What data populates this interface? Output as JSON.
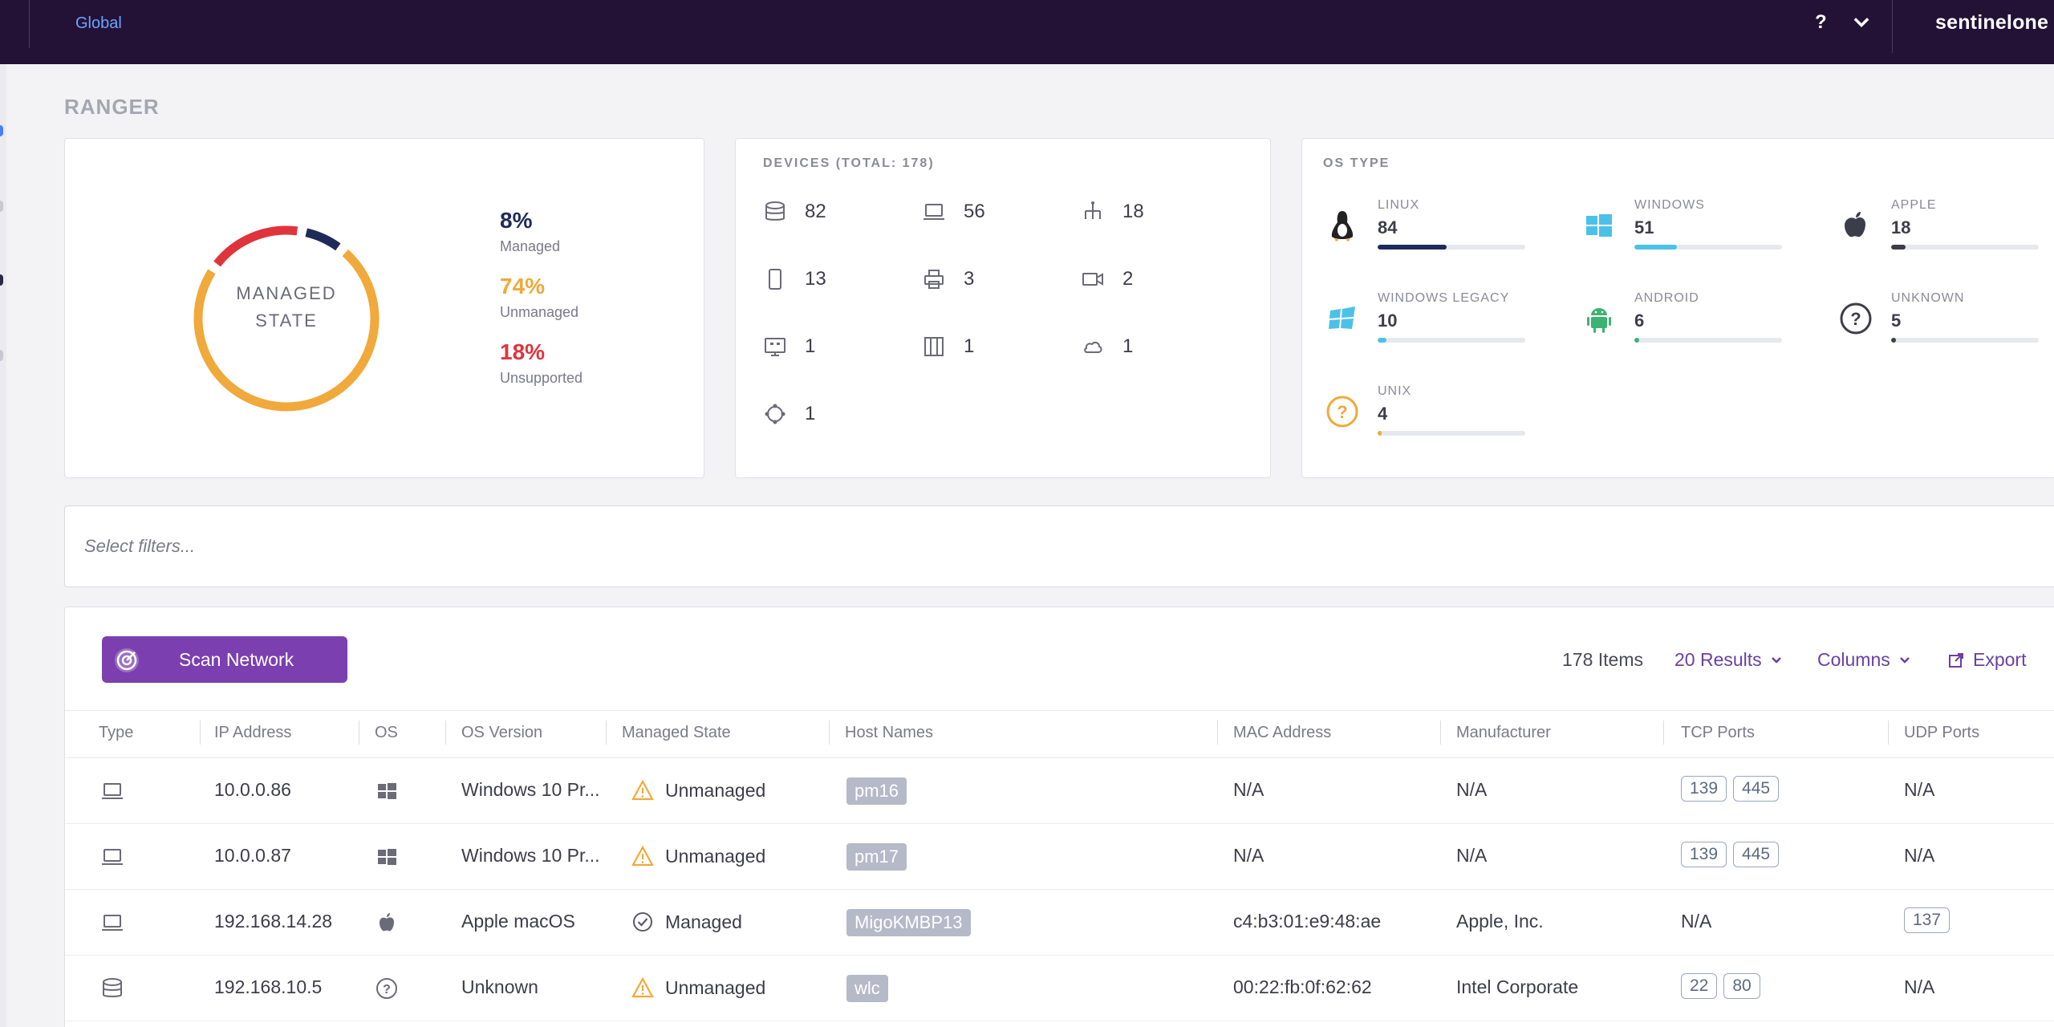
{
  "topbar": {
    "scope": "Global",
    "help": "?",
    "brand": "sentinelone"
  },
  "page_title": "RANGER",
  "managed_state": {
    "center_line1": "MANAGED",
    "center_line2": "STATE",
    "legend": [
      {
        "pct": "8%",
        "label": "Managed",
        "color": "#1e2a5a"
      },
      {
        "pct": "74%",
        "label": "Unmanaged",
        "color": "#f0a93a"
      },
      {
        "pct": "18%",
        "label": "Unsupported",
        "color": "#e0343c"
      }
    ]
  },
  "devices": {
    "label": "DEVICES (TOTAL: 178)",
    "items": [
      {
        "icon": "server-icon",
        "count": "82"
      },
      {
        "icon": "laptop-icon",
        "count": "56"
      },
      {
        "icon": "network-icon",
        "count": "18"
      },
      {
        "icon": "mobile-icon",
        "count": "13"
      },
      {
        "icon": "printer-icon",
        "count": "3"
      },
      {
        "icon": "camera-icon",
        "count": "2"
      },
      {
        "icon": "display-icon",
        "count": "1"
      },
      {
        "icon": "storage-icon",
        "count": "1"
      },
      {
        "icon": "cloud-icon",
        "count": "1"
      },
      {
        "icon": "iot-icon",
        "count": "1"
      }
    ]
  },
  "os_type": {
    "label": "OS TYPE",
    "items": [
      {
        "name": "LINUX",
        "count": "84",
        "fraction": 0.47,
        "color": "#1e2a5a",
        "icon": "linux-icon"
      },
      {
        "name": "WINDOWS",
        "count": "51",
        "fraction": 0.29,
        "color": "#4cc1e8",
        "icon": "windows-icon"
      },
      {
        "name": "APPLE",
        "count": "18",
        "fraction": 0.1,
        "color": "#3d3d4a",
        "icon": "apple-icon"
      },
      {
        "name": "WINDOWS LEGACY",
        "count": "10",
        "fraction": 0.06,
        "color": "#4cc1e8",
        "icon": "windows-legacy-icon"
      },
      {
        "name": "ANDROID",
        "count": "6",
        "fraction": 0.035,
        "color": "#3cb371",
        "icon": "android-icon"
      },
      {
        "name": "UNKNOWN",
        "count": "5",
        "fraction": 0.03,
        "color": "#3d3d4a",
        "icon": "unknown-icon"
      },
      {
        "name": "UNIX",
        "count": "4",
        "fraction": 0.025,
        "color": "#f0a93a",
        "icon": "unix-icon"
      }
    ]
  },
  "filter": {
    "placeholder": "Select filters..."
  },
  "toolbar": {
    "scan_label": "Scan Network",
    "items_count": "178 Items",
    "results": "20 Results",
    "columns": "Columns",
    "export": "Export"
  },
  "table": {
    "headers": [
      "Type",
      "IP Address",
      "OS",
      "OS Version",
      "Managed State",
      "Host Names",
      "MAC Address",
      "Manufacturer",
      "TCP Ports",
      "UDP Ports"
    ],
    "rows": [
      {
        "type": "laptop-icon",
        "ip": "10.0.0.86",
        "os": "windows-icon",
        "os_version": "Windows 10 Pr...",
        "state": "Unmanaged",
        "state_icon": "warning-icon",
        "host": "pm16",
        "mac": "N/A",
        "manufacturer": "N/A",
        "tcp": [
          "139",
          "445"
        ],
        "udp": "N/A"
      },
      {
        "type": "laptop-icon",
        "ip": "10.0.0.87",
        "os": "windows-icon",
        "os_version": "Windows 10 Pr...",
        "state": "Unmanaged",
        "state_icon": "warning-icon",
        "host": "pm17",
        "mac": "N/A",
        "manufacturer": "N/A",
        "tcp": [
          "139",
          "445"
        ],
        "udp": "N/A"
      },
      {
        "type": "laptop-icon",
        "ip": "192.168.14.28",
        "os": "apple-icon",
        "os_version": "Apple macOS",
        "state": "Managed",
        "state_icon": "check-circle-icon",
        "host": "MigoKMBP13",
        "mac": "c4:b3:01:e9:48:ae",
        "manufacturer": "Apple, Inc.",
        "tcp_text": "N/A",
        "udp_chips": [
          "137"
        ]
      },
      {
        "type": "server-icon",
        "ip": "192.168.10.5",
        "os": "unknown-icon",
        "os_version": "Unknown",
        "state": "Unmanaged",
        "state_icon": "warning-icon",
        "host": "wlc",
        "mac": "00:22:fb:0f:62:62",
        "manufacturer": "Intel Corporate",
        "tcp": [
          "22",
          "80"
        ],
        "udp": "N/A"
      }
    ]
  }
}
